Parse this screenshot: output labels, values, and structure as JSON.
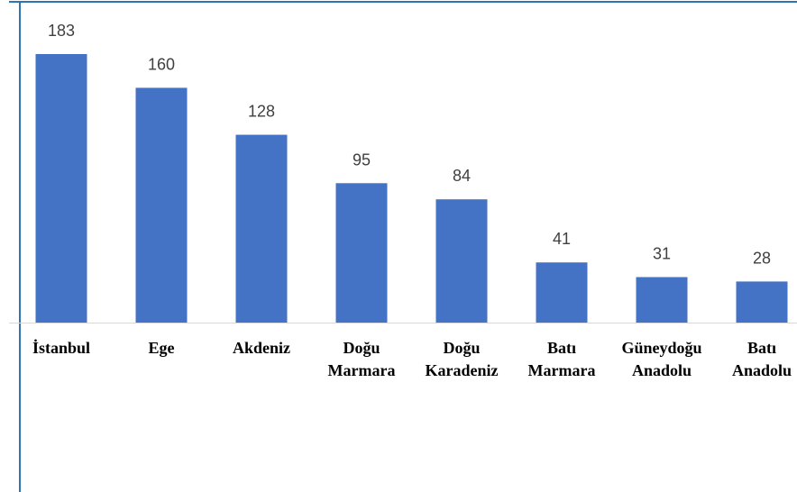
{
  "chart_data": {
    "type": "bar",
    "categories": [
      "İstanbul",
      "Ege",
      "Akdeniz",
      "Doğu Marmara",
      "Doğu Karadeniz",
      "Batı Marmara",
      "Güneydoğu Anadolu",
      "Batı Anadolu"
    ],
    "values": [
      183,
      160,
      128,
      95,
      84,
      41,
      31,
      28
    ],
    "color": "#4472c4"
  }
}
